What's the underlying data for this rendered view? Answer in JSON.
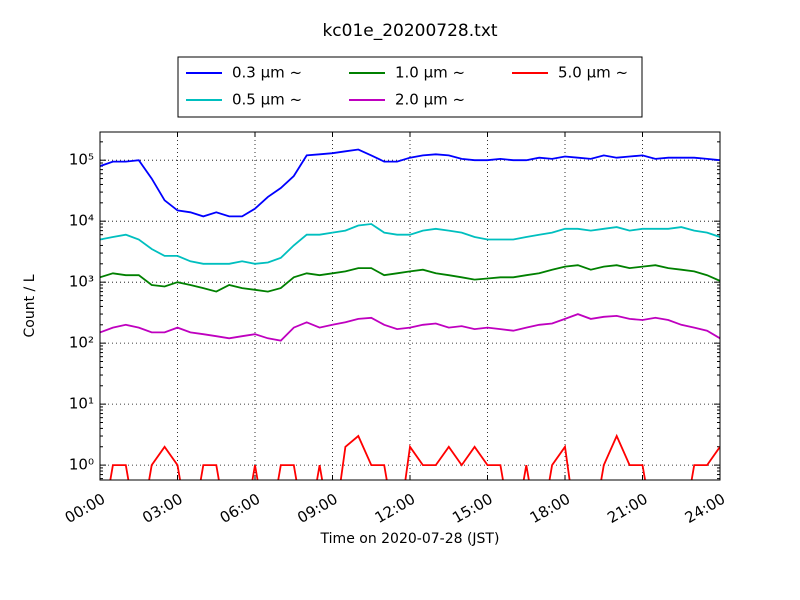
{
  "chart_data": {
    "type": "line",
    "title": "kc01e_20200728.txt",
    "xlabel": "Time on 2020-07-28 (JST)",
    "ylabel": "Count / L",
    "x": [
      0,
      0.5,
      1,
      1.5,
      2,
      2.5,
      3,
      3.5,
      4,
      4.5,
      5,
      5.5,
      6,
      6.5,
      7,
      7.5,
      8,
      8.5,
      9,
      9.5,
      10,
      10.5,
      11,
      11.5,
      12,
      12.5,
      13,
      13.5,
      14,
      14.5,
      15,
      15.5,
      16,
      16.5,
      17,
      17.5,
      18,
      18.5,
      19,
      19.5,
      20,
      20.5,
      21,
      21.5,
      22,
      22.5,
      23,
      23.5,
      24
    ],
    "series": [
      {
        "name": "0.3 μm  ~",
        "color": "#0000ff",
        "values": [
          80000,
          95000,
          95000,
          100000,
          50000,
          22000,
          15000,
          14000,
          12000,
          14000,
          12000,
          12000,
          16000,
          25000,
          35000,
          55000,
          120000,
          125000,
          130000,
          140000,
          150000,
          120000,
          95000,
          95000,
          110000,
          120000,
          125000,
          120000,
          105000,
          100000,
          100000,
          105000,
          100000,
          100000,
          110000,
          105000,
          115000,
          110000,
          105000,
          120000,
          110000,
          115000,
          120000,
          105000,
          110000,
          110000,
          110000,
          105000,
          100000
        ]
      },
      {
        "name": "0.5 μm  ~",
        "color": "#00bfbf",
        "values": [
          5000,
          5500,
          6000,
          5000,
          3500,
          2700,
          2700,
          2200,
          2000,
          2000,
          2000,
          2200,
          2000,
          2100,
          2500,
          4000,
          6000,
          6000,
          6500,
          7000,
          8500,
          9000,
          6500,
          6000,
          6000,
          7000,
          7500,
          7000,
          6500,
          5500,
          5000,
          5000,
          5000,
          5500,
          6000,
          6500,
          7500,
          7500,
          7000,
          7500,
          8000,
          7000,
          7500,
          7500,
          7500,
          8000,
          7000,
          6500,
          5500
        ]
      },
      {
        "name": "1.0 μm  ~",
        "color": "#008000",
        "values": [
          1200,
          1400,
          1300,
          1300,
          900,
          850,
          1000,
          900,
          800,
          700,
          900,
          800,
          750,
          700,
          800,
          1200,
          1400,
          1300,
          1400,
          1500,
          1700,
          1700,
          1300,
          1400,
          1500,
          1600,
          1400,
          1300,
          1200,
          1100,
          1150,
          1200,
          1200,
          1300,
          1400,
          1600,
          1800,
          1900,
          1600,
          1800,
          1900,
          1700,
          1800,
          1900,
          1700,
          1600,
          1500,
          1300,
          1050
        ]
      },
      {
        "name": "2.0 μm  ~",
        "color": "#bf00bf",
        "values": [
          150,
          180,
          200,
          180,
          150,
          150,
          180,
          150,
          140,
          130,
          120,
          130,
          140,
          120,
          110,
          180,
          220,
          180,
          200,
          220,
          250,
          260,
          200,
          170,
          180,
          200,
          210,
          180,
          190,
          170,
          180,
          170,
          160,
          180,
          200,
          210,
          250,
          300,
          250,
          270,
          280,
          250,
          240,
          260,
          240,
          200,
          180,
          160,
          120
        ]
      },
      {
        "name": "5.0 μm  ~",
        "color": "#ff0000",
        "values": [
          0,
          1,
          1,
          0,
          1,
          2,
          1,
          0,
          1,
          1,
          0,
          0,
          1,
          0,
          1,
          1,
          0,
          1,
          0,
          2,
          3,
          1,
          1,
          0,
          2,
          1,
          1,
          2,
          1,
          2,
          1,
          1,
          0,
          1,
          0,
          1,
          2,
          0,
          0,
          1,
          3,
          1,
          1,
          0,
          0,
          0,
          1,
          1,
          2
        ]
      }
    ],
    "xlim": [
      0,
      24
    ],
    "xticks": [
      {
        "value": 0,
        "label": "00:00"
      },
      {
        "value": 3,
        "label": "03:00"
      },
      {
        "value": 6,
        "label": "06:00"
      },
      {
        "value": 9,
        "label": "09:00"
      },
      {
        "value": 12,
        "label": "12:00"
      },
      {
        "value": 15,
        "label": "15:00"
      },
      {
        "value": 18,
        "label": "18:00"
      },
      {
        "value": 21,
        "label": "21:00"
      },
      {
        "value": 24,
        "label": "24:00"
      }
    ],
    "ylim": [
      0.57,
      290000
    ],
    "yticks": [
      {
        "value": 1,
        "label": "10⁰"
      },
      {
        "value": 10,
        "label": "10¹"
      },
      {
        "value": 100,
        "label": "10²"
      },
      {
        "value": 1000,
        "label": "10³"
      },
      {
        "value": 10000,
        "label": "10⁴"
      },
      {
        "value": 100000,
        "label": "10⁵"
      }
    ],
    "ylog": true,
    "grid": true,
    "legend": "upper center"
  }
}
